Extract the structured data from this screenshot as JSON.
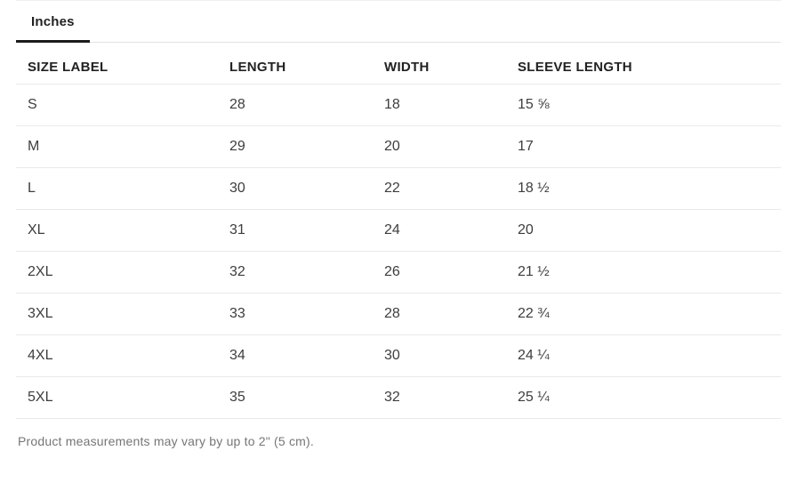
{
  "tab_bar": {
    "tabs": [
      {
        "label": "Inches",
        "active": true
      }
    ]
  },
  "size_chart": {
    "columns": [
      "SIZE LABEL",
      "LENGTH",
      "WIDTH",
      "SLEEVE LENGTH"
    ],
    "rows": [
      {
        "size": "S",
        "length": "28",
        "width": "18",
        "sleeve_length": "15 ⅝"
      },
      {
        "size": "M",
        "length": "29",
        "width": "20",
        "sleeve_length": "17"
      },
      {
        "size": "L",
        "length": "30",
        "width": "22",
        "sleeve_length": "18 ½"
      },
      {
        "size": "XL",
        "length": "31",
        "width": "24",
        "sleeve_length": "20"
      },
      {
        "size": "2XL",
        "length": "32",
        "width": "26",
        "sleeve_length": "21 ½"
      },
      {
        "size": "3XL",
        "length": "33",
        "width": "28",
        "sleeve_length": "22 ¾"
      },
      {
        "size": "4XL",
        "length": "34",
        "width": "30",
        "sleeve_length": "24 ¼"
      },
      {
        "size": "5XL",
        "length": "35",
        "width": "32",
        "sleeve_length": "25 ¼"
      }
    ]
  },
  "footer": {
    "note": "Product measurements may vary by up to 2\" (5 cm)."
  },
  "colors": {
    "active_tab_underline": "#1c1c1c",
    "header_text": "#222222",
    "body_text": "#3d3d3d",
    "muted_text": "#767676",
    "divider": "#e9e9e9"
  }
}
